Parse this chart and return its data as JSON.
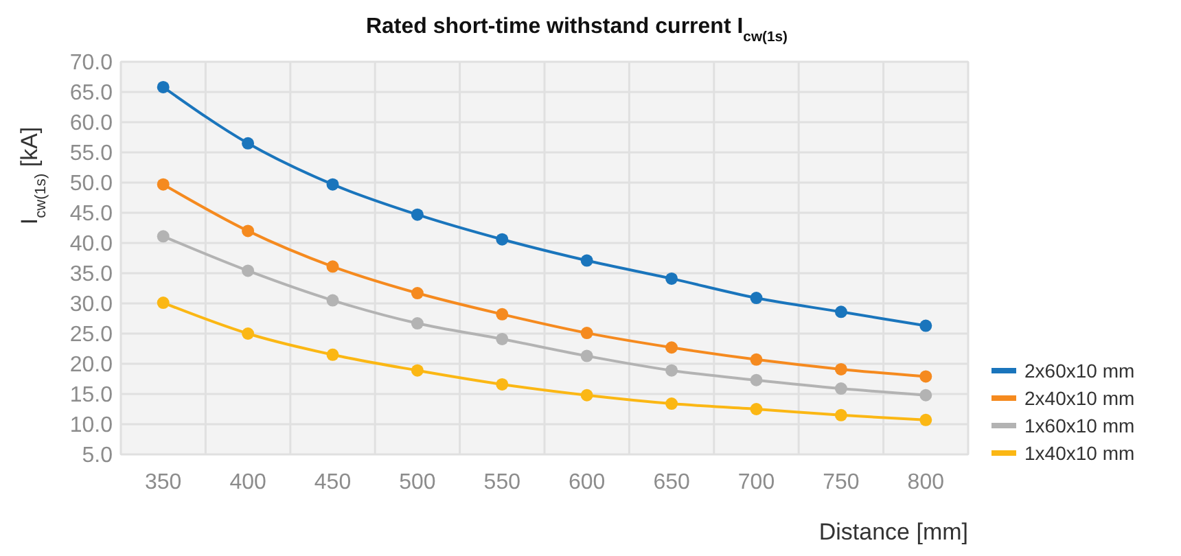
{
  "chart_data": {
    "type": "line",
    "title": "Rated short-time withstand current I$_{cw(1s)}$",
    "xlabel": "Distance [mm]",
    "ylabel": "I$_{cw(1s)}$ [kA]",
    "categories": [
      "350",
      "400",
      "450",
      "500",
      "550",
      "600",
      "650",
      "700",
      "750",
      "800"
    ],
    "series": [
      {
        "name": "2x60x10 mm",
        "color": "#1a75bc",
        "values": [
          65.8,
          56.5,
          49.7,
          44.7,
          40.6,
          37.1,
          34.1,
          30.9,
          28.6,
          26.3
        ]
      },
      {
        "name": "2x40x10 mm",
        "color": "#f58a1f",
        "values": [
          49.7,
          42.0,
          36.1,
          31.7,
          28.2,
          25.1,
          22.7,
          20.7,
          19.1,
          17.9
        ]
      },
      {
        "name": "1x60x10 mm",
        "color": "#b3b3b3",
        "values": [
          41.1,
          35.4,
          30.5,
          26.7,
          24.1,
          21.3,
          18.9,
          17.3,
          15.9,
          14.8
        ]
      },
      {
        "name": "1x40x10 mm",
        "color": "#fbb714",
        "values": [
          30.1,
          25.0,
          21.5,
          18.9,
          16.6,
          14.8,
          13.4,
          12.5,
          11.5,
          10.7
        ]
      }
    ],
    "ylim": [
      5,
      70
    ],
    "yticks": [
      {
        "value": 5,
        "label": "5.0"
      },
      {
        "value": 10,
        "label": "10.0"
      },
      {
        "value": 15,
        "label": "15.0"
      },
      {
        "value": 20,
        "label": "20.0"
      },
      {
        "value": 25,
        "label": "25.0"
      },
      {
        "value": 30,
        "label": "30.0"
      },
      {
        "value": 35,
        "label": "35.0"
      },
      {
        "value": 40,
        "label": "40.0"
      },
      {
        "value": 45,
        "label": "45.0"
      },
      {
        "value": 50,
        "label": "50.0"
      },
      {
        "value": 55,
        "label": "55.0"
      },
      {
        "value": 60,
        "label": "60.0"
      },
      {
        "value": 65,
        "label": "65.0"
      },
      {
        "value": 70,
        "label": "70.0"
      }
    ],
    "grid": true,
    "legend": "right",
    "marker": "circle",
    "line_style": "solid"
  }
}
